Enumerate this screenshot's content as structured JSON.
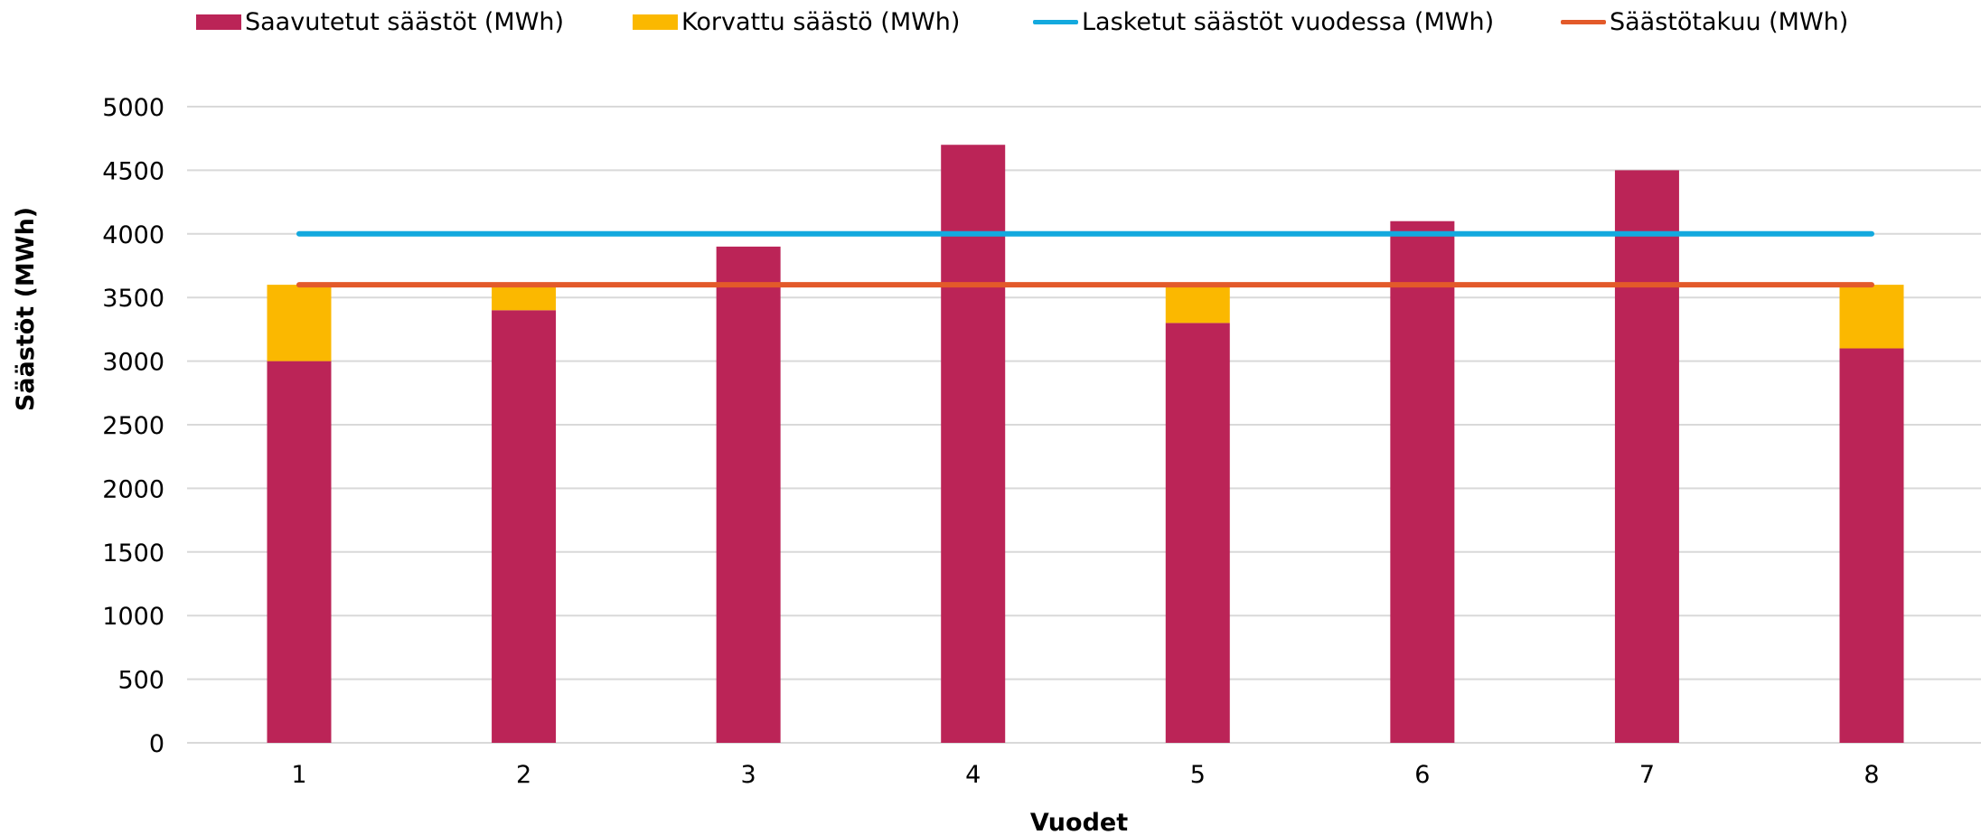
{
  "chart_data": {
    "type": "bar",
    "stacked": true,
    "categories": [
      "1",
      "2",
      "3",
      "4",
      "5",
      "6",
      "7",
      "8"
    ],
    "series": [
      {
        "name": "Saavutetut säästöt (MWh)",
        "kind": "bar",
        "color": "#BB2457",
        "values": [
          3000,
          3400,
          3900,
          4700,
          3300,
          4100,
          4500,
          3100
        ]
      },
      {
        "name": "Korvattu säästö (MWh)",
        "kind": "bar",
        "color": "#FBB800",
        "values": [
          600,
          200,
          0,
          0,
          300,
          0,
          0,
          500
        ]
      },
      {
        "name": "Lasketut säästöt vuodessa (MWh)",
        "kind": "line",
        "color": "#13A9DE",
        "values": [
          4000,
          4000,
          4000,
          4000,
          4000,
          4000,
          4000,
          4000
        ]
      },
      {
        "name": "Säästötakuu (MWh)",
        "kind": "line",
        "color": "#E35A2A",
        "values": [
          3600,
          3600,
          3600,
          3600,
          3600,
          3600,
          3600,
          3600
        ]
      }
    ],
    "xlabel": "Vuodet",
    "ylabel": "Säästöt (MWh)",
    "ylim": [
      0,
      5000
    ],
    "yticks": [
      "0",
      "500",
      "1000",
      "1500",
      "2000",
      "2500",
      "3000",
      "3500",
      "4000",
      "4500",
      "5000"
    ],
    "grid": true,
    "legend_position": "top"
  }
}
